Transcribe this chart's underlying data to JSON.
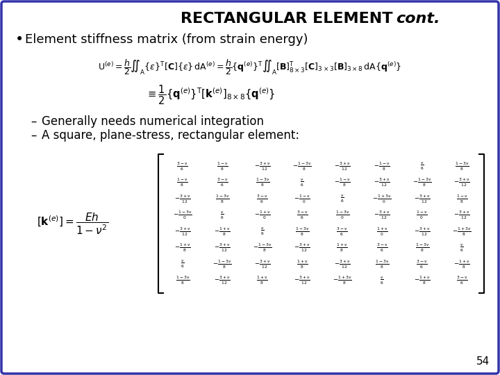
{
  "title_bold": "RECTANGULAR ELEMENT ",
  "title_italic": "cont.",
  "background_color": "#ffffff",
  "border_color": "#3333aa",
  "bullet_text": "Element stiffness matrix (from strain energy)",
  "dash1": "Generally needs numerical integration",
  "dash2": "A square, plane-stress, rectangular element:",
  "page_number": "54",
  "font_color": "#000000",
  "matrix_rows": [
    [
      "\\frac{3-\\nu}{6}",
      "\\frac{1-\\nu}{8}",
      "-\\frac{3+\\nu}{12}",
      "-\\frac{1-3\\nu}{8}",
      "-\\frac{3+\\nu}{12}",
      "-\\frac{1-\\nu}{8}",
      "\\frac{\\nu}{6}",
      "\\frac{1-3\\nu}{8}"
    ],
    [
      "\\frac{1-\\nu}{8}",
      "\\frac{3-\\nu}{6}",
      "\\frac{1-3\\nu}{8}",
      "\\frac{\\nu}{6}",
      "-\\frac{1-\\nu}{8}",
      "-\\frac{3+\\nu}{12}",
      "-\\frac{1-3\\nu}{8}",
      "-\\frac{3+\\nu}{12}"
    ],
    [
      "-\\frac{3+\\nu}{12}",
      "\\frac{1-3\\nu}{8}",
      "\\frac{3-\\nu}{6}",
      "-\\frac{1-\\nu}{0}",
      "\\frac{\\nu}{6}",
      "-\\frac{1+3\\nu}{0}",
      "-\\frac{3+\\nu}{12}",
      "\\frac{1-\\nu}{8}"
    ],
    [
      "-\\frac{1-3\\nu}{0}",
      "\\frac{\\nu}{6}",
      "-\\frac{1+\\nu}{0}",
      "\\frac{3-\\nu}{6}",
      "\\frac{1-3\\nu}{0}",
      "-\\frac{3+\\nu}{12}",
      "\\frac{1-\\nu}{0}",
      "-\\frac{3+\\nu}{12}"
    ],
    [
      "-\\frac{3+\\nu}{12}",
      "-\\frac{1+\\nu}{8}",
      "\\frac{\\nu}{6}",
      "\\frac{1-3\\nu}{8}",
      "\\frac{3-\\nu}{6}",
      "\\frac{1+\\nu}{0}",
      "-\\frac{3+\\nu}{12}",
      "-\\frac{1+3\\nu}{8}"
    ],
    [
      "-\\frac{1+\\nu}{8}",
      "-\\frac{3+\\nu}{12}",
      "-\\frac{1-3\\nu}{8}",
      "-\\frac{3+\\nu}{12}",
      "\\frac{1+\\nu}{8}",
      "\\frac{3-\\nu}{6}",
      "\\frac{1-3\\nu}{8}",
      "\\frac{\\nu}{6}"
    ],
    [
      "\\frac{\\nu}{6}",
      "-\\frac{1-3\\nu}{8}",
      "-\\frac{3+\\nu}{12}",
      "\\frac{1+\\nu}{8}",
      "-\\frac{3+\\nu}{12}",
      "\\frac{1-3\\nu}{8}",
      "\\frac{3-\\nu}{6}",
      "-\\frac{1+\\nu}{8}"
    ],
    [
      "\\frac{1-3\\nu}{8}",
      "-\\frac{3+\\nu}{12}",
      "\\frac{1+\\nu}{8}",
      "-\\frac{3+\\nu}{12}",
      "-\\frac{1+3\\nu}{8}",
      "\\frac{\\nu}{6}",
      "-\\frac{1+\\nu}{8}",
      "\\frac{3-\\nu}{6}"
    ]
  ]
}
